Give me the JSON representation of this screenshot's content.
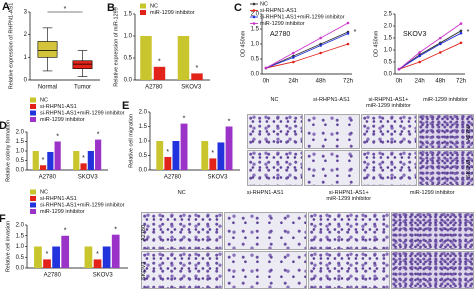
{
  "chart_data": [
    {
      "label": "A",
      "type": "box",
      "ylabel": "Relative expression of RHPN1-AS1",
      "categories": [
        "Normal",
        "Tumor"
      ],
      "boxes": [
        {
          "color": "#d3c43a",
          "whislo": 0.4,
          "q1": 1.0,
          "med": 1.3,
          "q3": 1.7,
          "whishi": 2.3
        },
        {
          "color": "#e2231a",
          "whislo": 0.15,
          "q1": 0.5,
          "med": 0.7,
          "q3": 0.85,
          "whishi": 1.3
        }
      ],
      "ylim": [
        0,
        3
      ],
      "yticks": [
        0,
        1,
        2,
        3
      ],
      "annotations": [
        "*"
      ]
    },
    {
      "label": "B",
      "type": "bar",
      "ylabel": "Relative expression of miR-1299",
      "categories": [
        "A2780",
        "SKOV3"
      ],
      "series": [
        {
          "name": "NC",
          "color": "#c9c52c",
          "values": [
            1.0,
            1.0
          ]
        },
        {
          "name": "miR-1299 inhibitor",
          "color": "#e2231a",
          "values": [
            0.3,
            0.15
          ],
          "stars": [
            "*",
            "*"
          ]
        }
      ],
      "ylim": [
        0,
        1.5
      ],
      "yticks": [
        {
          "value": 0,
          "label": "0.0"
        },
        0.5,
        {
          "value": 1,
          "label": "1.0"
        },
        1.5
      ]
    },
    {
      "label": "C",
      "type": "line",
      "title": "A2780",
      "ylabel": "OD 450nm",
      "categories": [
        "0h",
        "24h",
        "48h",
        "72h"
      ],
      "series": [
        {
          "name": "NC",
          "color": "#333333",
          "values": [
            0.2,
            0.6,
            1.0,
            1.4
          ]
        },
        {
          "name": "si-RHPN1-AS1",
          "color": "#e2231a",
          "values": [
            0.2,
            0.4,
            0.7,
            1.0
          ]
        },
        {
          "name": "si-RHPN1-AS1+miR-1299 inhibitor",
          "color": "#2233dd",
          "values": [
            0.2,
            0.55,
            0.95,
            1.35
          ]
        },
        {
          "name": "miR-1299 inhibitor",
          "color": "#cc33cc",
          "values": [
            0.2,
            0.7,
            1.2,
            1.7
          ]
        }
      ],
      "ylim": [
        0,
        2
      ],
      "yticks": [
        {
          "value": 0,
          "label": "0.0"
        },
        0.5,
        {
          "value": 1,
          "label": "1.0"
        },
        1.5,
        {
          "value": 2,
          "label": "2.0"
        }
      ],
      "annotations": [
        "*"
      ]
    },
    {
      "type": "line",
      "title": "SKOV3",
      "ylabel": "OD 450nm",
      "legend": false,
      "categories": [
        "0h",
        "24h",
        "48h",
        "72h"
      ],
      "series": [
        {
          "name": "NC",
          "color": "#333333",
          "values": [
            0.2,
            0.8,
            1.3,
            1.8
          ]
        },
        {
          "name": "si-RHPN1-AS1",
          "color": "#e2231a",
          "values": [
            0.2,
            0.5,
            0.9,
            1.3
          ]
        },
        {
          "name": "si-RHPN1-AS1+miR-1299 inhibitor",
          "color": "#2233dd",
          "values": [
            0.2,
            0.75,
            1.25,
            1.7
          ]
        },
        {
          "name": "miR-1299 inhibitor",
          "color": "#cc33cc",
          "values": [
            0.2,
            0.9,
            1.5,
            2.1
          ]
        }
      ],
      "ylim": [
        0,
        2.5
      ],
      "yticks": [
        {
          "value": 0,
          "label": "0.0"
        },
        0.5,
        {
          "value": 1,
          "label": "1.0"
        },
        1.5,
        {
          "value": 2,
          "label": "2.0"
        },
        2.5
      ],
      "annotations": [
        "*"
      ]
    },
    {
      "label": "D",
      "type": "bar",
      "ylabel": "Relative colony formation",
      "categories": [
        "A2780",
        "SKOV3"
      ],
      "series": [
        {
          "name": "NC",
          "color": "#c9c52c",
          "values": [
            1.0,
            1.0
          ]
        },
        {
          "name": "si-RHPN1-AS1",
          "color": "#e2231a",
          "values": [
            0.25,
            0.35
          ],
          "stars": [
            "*",
            "*"
          ]
        },
        {
          "name": "si-RHPN1-AS1+miR-1299 inhibitor",
          "color": "#2233dd",
          "values": [
            0.95,
            1.0
          ]
        },
        {
          "name": "miR-1299 inhibitor",
          "color": "#9b33c8",
          "values": [
            1.5,
            1.6
          ],
          "stars": [
            "*",
            "*"
          ]
        }
      ],
      "ylim": [
        0,
        2
      ],
      "yticks": [
        {
          "value": 0,
          "label": "0.0"
        },
        0.5,
        {
          "value": 1,
          "label": "1.0"
        },
        1.5,
        {
          "value": 2,
          "label": "2.0"
        }
      ]
    },
    {
      "label": "E",
      "type": "bar",
      "ylabel": "Relative cell migration",
      "legend": false,
      "categories": [
        "A2780",
        "SKOV3"
      ],
      "series": [
        {
          "name": "NC",
          "color": "#c9c52c",
          "values": [
            1.0,
            1.0
          ]
        },
        {
          "name": "si-RHPN1-AS1",
          "color": "#e2231a",
          "values": [
            0.45,
            0.4
          ],
          "stars": [
            "*",
            "*"
          ]
        },
        {
          "name": "si-RHPN1-AS1+miR-1299 inhibitor",
          "color": "#2233dd",
          "values": [
            1.0,
            0.95
          ]
        },
        {
          "name": "miR-1299 inhibitor",
          "color": "#9b33c8",
          "values": [
            1.6,
            1.5
          ],
          "stars": [
            "*",
            "*"
          ]
        }
      ],
      "ylim": [
        0,
        2
      ],
      "yticks": [
        {
          "value": 0,
          "label": "0.0"
        },
        0.5,
        {
          "value": 1,
          "label": "1.0"
        },
        1.5,
        {
          "value": 2,
          "label": "2.0"
        }
      ]
    },
    {
      "label": "F",
      "type": "bar",
      "ylabel": "Relative cell invasion",
      "categories": [
        "A2780",
        "SKOV3"
      ],
      "series": [
        {
          "name": "NC",
          "color": "#c9c52c",
          "values": [
            1.0,
            1.0
          ]
        },
        {
          "name": "si-RHPN1-AS1",
          "color": "#e2231a",
          "values": [
            0.4,
            0.4
          ],
          "stars": [
            "*",
            "*"
          ]
        },
        {
          "name": "si-RHPN1-AS1+miR-1299 inhibitor",
          "color": "#2233dd",
          "values": [
            1.0,
            1.0
          ]
        },
        {
          "name": "miR-1299 inhibitor",
          "color": "#9b33c8",
          "values": [
            1.5,
            1.55
          ],
          "stars": [
            "*",
            "*"
          ]
        }
      ],
      "ylim": [
        0,
        2
      ],
      "yticks": [
        {
          "value": 0,
          "label": "0.0"
        },
        0.5,
        {
          "value": 1,
          "label": "1.0"
        },
        1.5,
        {
          "value": 2,
          "label": "2.0"
        }
      ]
    }
  ],
  "images": {
    "E": {
      "columns": [
        "NC",
        "si-RHPN1-AS1",
        "si-RHPN1-AS1+\nmiR-1299 inhibitor",
        "miR-1299 inhibitor"
      ],
      "rows": [
        "A2780",
        "SKOV3"
      ]
    },
    "F": {
      "columns": [
        "NC",
        "si-RHPN1-AS1",
        "si-RHPN1-AS1+\nmiR-1299 inhibitor",
        "miR-1299 inhibitor"
      ],
      "rows": [
        "A2780",
        "SKOV3"
      ]
    }
  }
}
